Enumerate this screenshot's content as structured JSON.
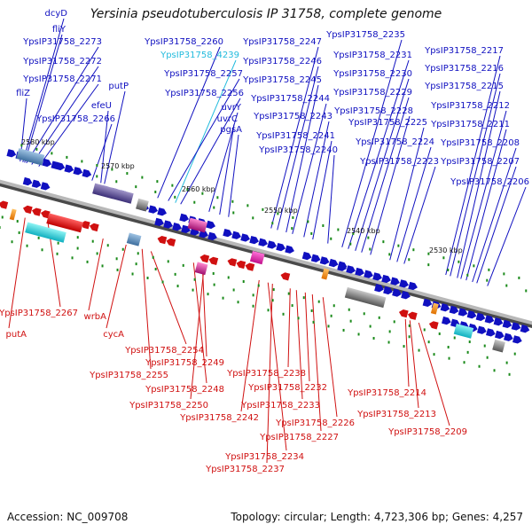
{
  "title": "Yersinia pseudotuberculosis IP 31758, complete genome",
  "footer": {
    "accession": "Accession: NC_009708",
    "summary": "Topology: circular; Length: 4,723,306 bp; Genes: 4,257"
  },
  "colors": {
    "forward": "#1010c0",
    "reverse": "#d01010",
    "cyan_label": "#22bbdd",
    "backbone": "#8a8a8a",
    "tick": "#1a8a1a"
  },
  "scale_labels": [
    "2580 kbp",
    "2570 kbp",
    "2560 kbp",
    "2550 kbp",
    "2540 kbp",
    "2530 kbp"
  ],
  "forward_genes": [
    "dcyD",
    "fliY",
    "YpsIP31758_2273",
    "YpsIP31758_2272",
    "YpsIP31758_2271",
    "fliZ",
    "putP",
    "efeU",
    "YpsIP31758_2266",
    "YpsIP31758_2260",
    "YpsIP31758_4239",
    "YpsIP31758_2257",
    "YpsIP31758_2256",
    "uvrY",
    "uvrC",
    "pgsA",
    "YpsIP31758_2247",
    "YpsIP31758_2246",
    "YpsIP31758_2245",
    "YpsIP31758_2244",
    "YpsIP31758_2243",
    "YpsIP31758_2241",
    "YpsIP31758_2240",
    "YpsIP31758_2235",
    "YpsIP31758_2231",
    "YpsIP31758_2230",
    "YpsIP31758_2229",
    "YpsIP31758_2228",
    "YpsIP31758_2225",
    "YpsIP31758_2224",
    "YpsIP31758_2223",
    "YpsIP31758_2217",
    "YpsIP31758_2216",
    "YpsIP31758_2215",
    "YpsIP31758_2212",
    "YpsIP31758_2211",
    "YpsIP31758_2208",
    "YpsIP31758_2207",
    "YpsIP31758_2206"
  ],
  "reverse_genes": [
    "YpsIP31758_2267",
    "putA",
    "wrbA",
    "cycA",
    "YpsIP31758_2254",
    "YpsIP31758_2255",
    "YpsIP31758_2249",
    "YpsIP31758_2248",
    "YpsIP31758_2250",
    "YpsIP31758_2242",
    "YpsIP31758_2238",
    "YpsIP31758_2232",
    "YpsIP31758_2233",
    "YpsIP31758_2234",
    "YpsIP31758_2237",
    "YpsIP31758_2226",
    "YpsIP31758_2227",
    "YpsIP31758_2214",
    "YpsIP31758_2213",
    "YpsIP31758_2209"
  ]
}
